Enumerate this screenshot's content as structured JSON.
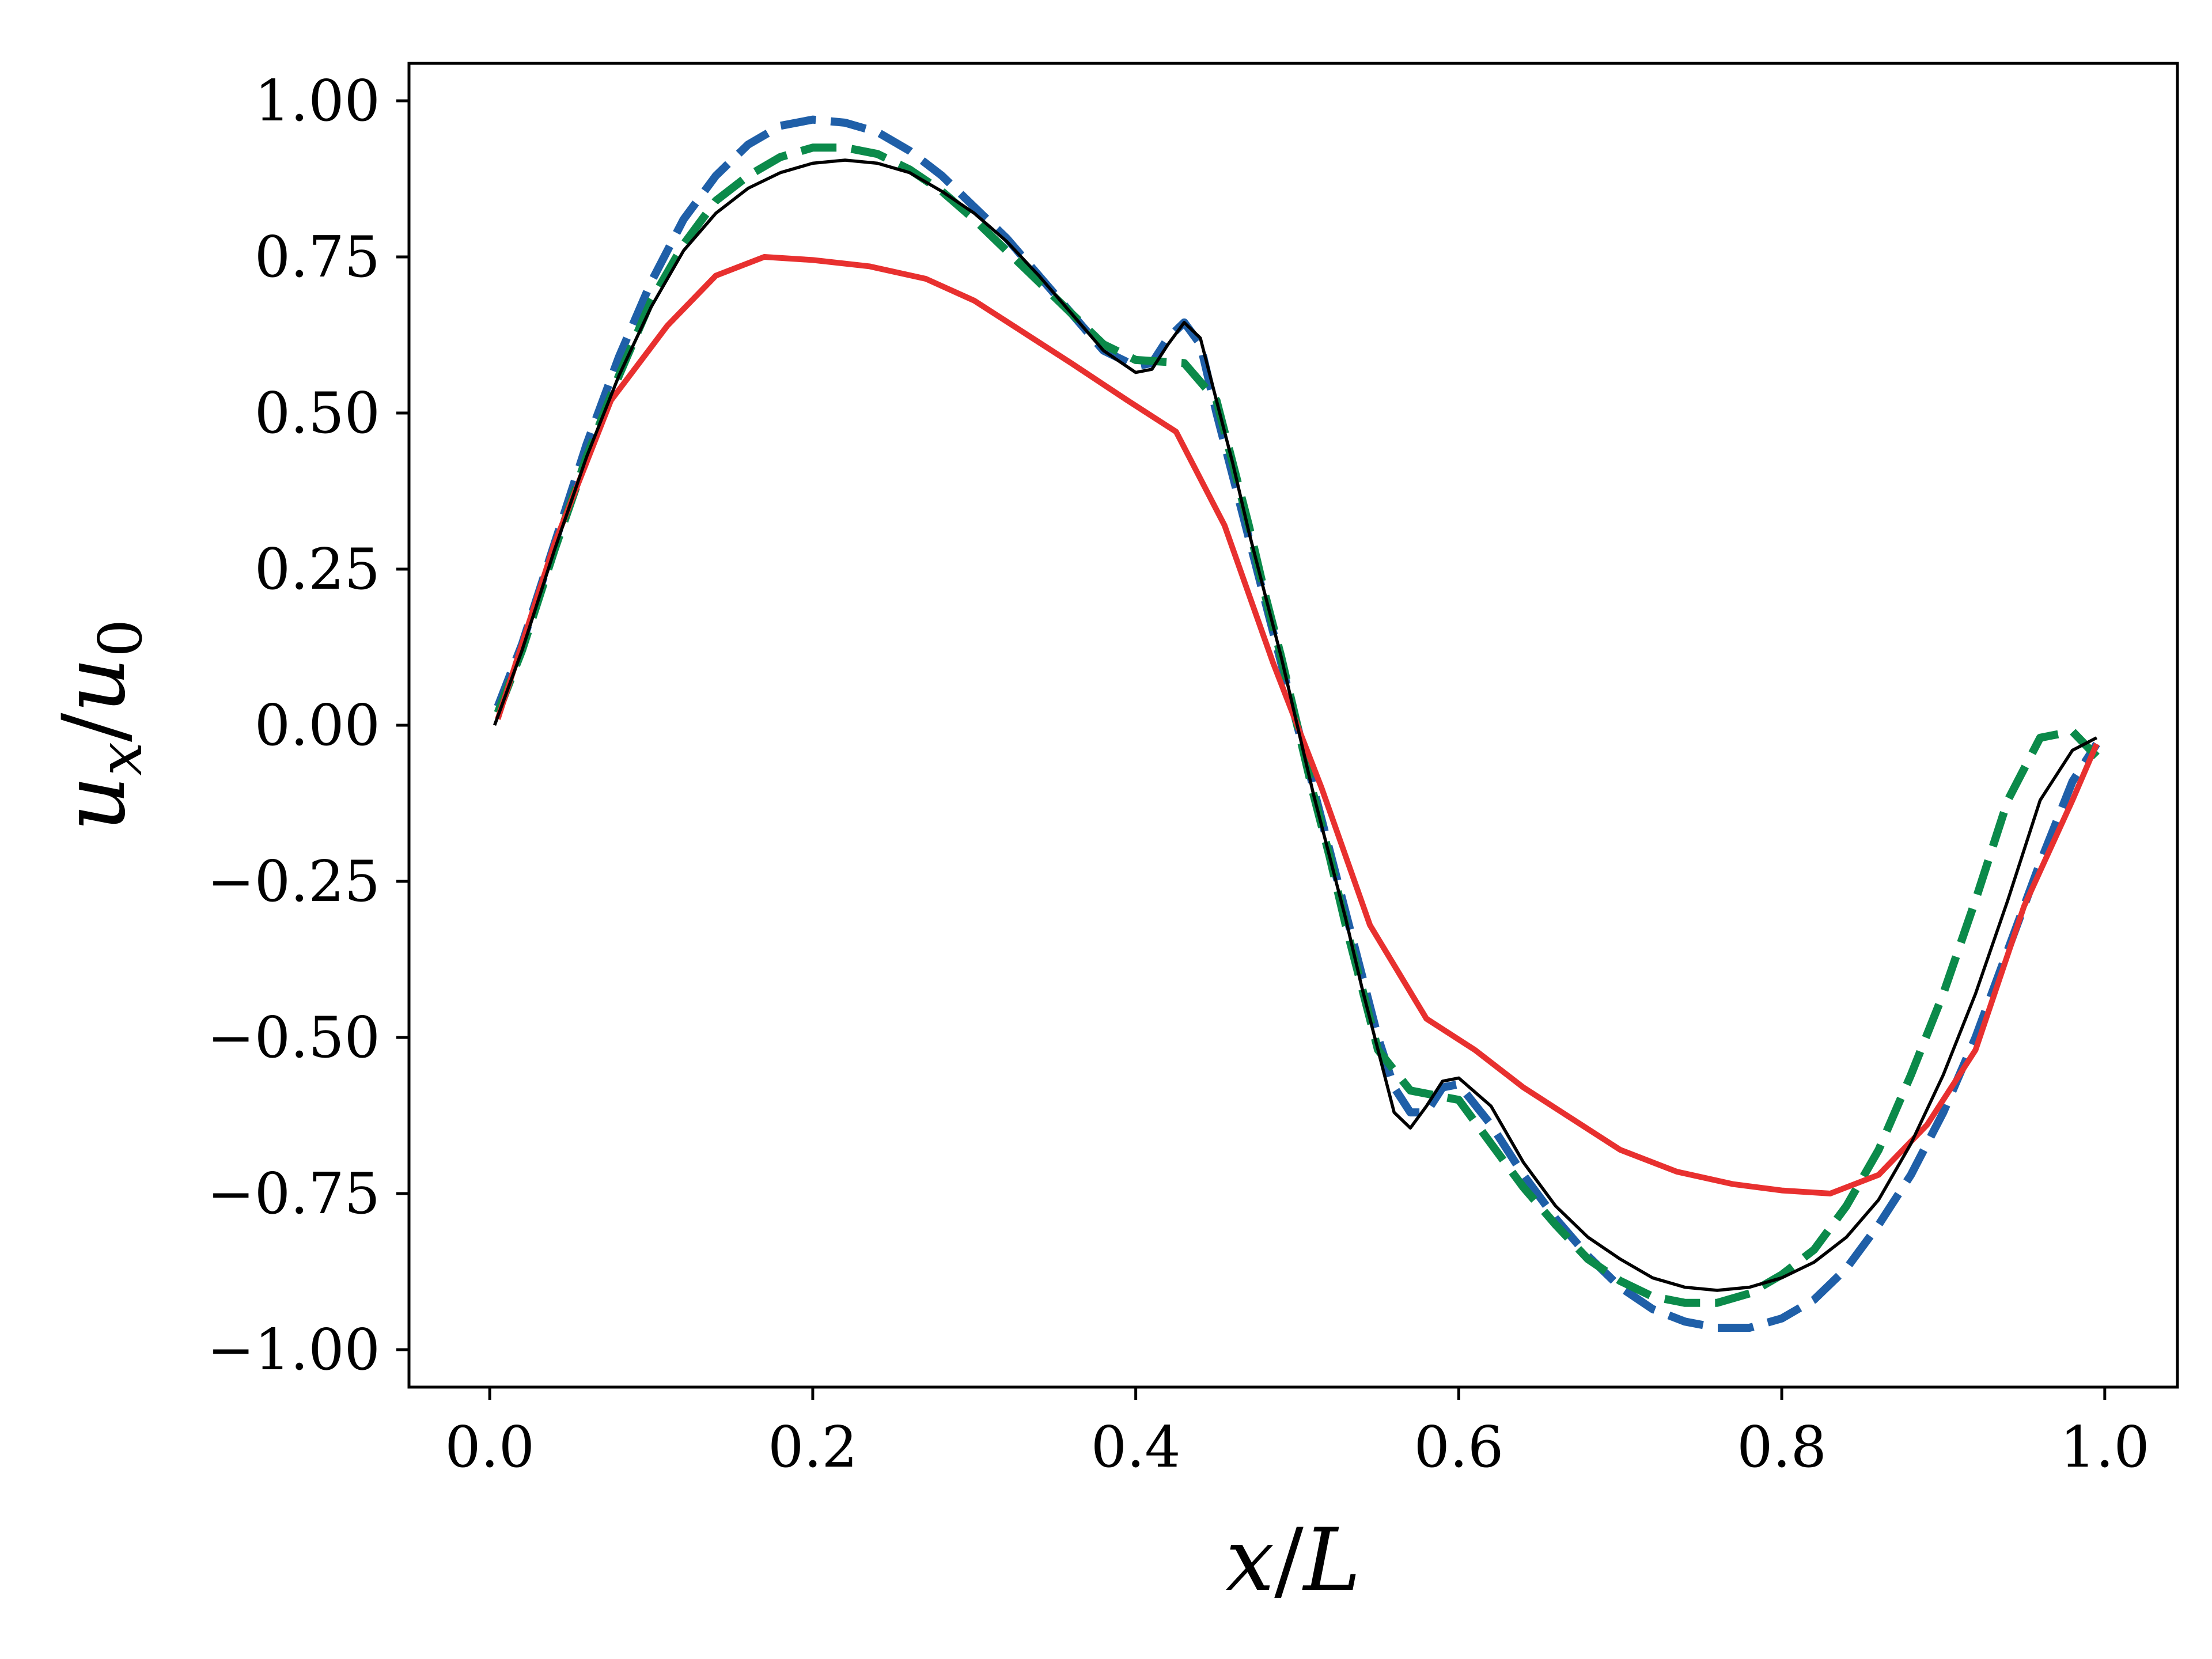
{
  "chart_data": {
    "type": "line",
    "title": "",
    "xlabel": "x/L",
    "ylabel": "u_x/u_0",
    "xlabel_parts": {
      "var": "x",
      "slash": "/",
      "den": "L"
    },
    "ylabel_parts": {
      "var": "u",
      "var_sub": "x",
      "slash": "/",
      "den": "u",
      "den_sub": "0"
    },
    "xlim": [
      -0.05,
      1.045
    ],
    "ylim": [
      -1.06,
      1.06
    ],
    "xticks": [
      0.0,
      0.2,
      0.4,
      0.6,
      0.8,
      1.0
    ],
    "xtick_labels": [
      "0.0",
      "0.2",
      "0.4",
      "0.6",
      "0.8",
      "1.0"
    ],
    "yticks": [
      1.0,
      0.75,
      0.5,
      0.25,
      0.0,
      -0.25,
      -0.5,
      -0.75,
      -1.0
    ],
    "ytick_labels": [
      "1.00",
      "0.75",
      "0.50",
      "0.25",
      "0.00",
      "−0.25",
      "−0.50",
      "−0.75",
      "−1.00"
    ],
    "grid": false,
    "legend": "none",
    "series": [
      {
        "color": "#1f5fa8",
        "style": "dashed",
        "x": [
          0.005,
          0.02,
          0.04,
          0.06,
          0.08,
          0.1,
          0.12,
          0.14,
          0.16,
          0.18,
          0.2,
          0.22,
          0.24,
          0.26,
          0.28,
          0.3,
          0.32,
          0.34,
          0.36,
          0.38,
          0.4,
          0.41,
          0.42,
          0.43,
          0.44,
          0.45,
          0.46,
          0.47,
          0.48,
          0.49,
          0.5,
          0.51,
          0.52,
          0.53,
          0.54,
          0.55,
          0.56,
          0.57,
          0.58,
          0.59,
          0.6,
          0.62,
          0.64,
          0.66,
          0.68,
          0.7,
          0.72,
          0.74,
          0.76,
          0.78,
          0.8,
          0.82,
          0.84,
          0.86,
          0.88,
          0.9,
          0.92,
          0.94,
          0.96,
          0.98,
          0.995
        ],
        "y": [
          0.03,
          0.13,
          0.29,
          0.45,
          0.59,
          0.71,
          0.81,
          0.88,
          0.93,
          0.96,
          0.97,
          0.965,
          0.95,
          0.92,
          0.88,
          0.83,
          0.78,
          0.72,
          0.66,
          0.6,
          0.575,
          0.58,
          0.62,
          0.645,
          0.61,
          0.5,
          0.4,
          0.3,
          0.2,
          0.1,
          0.0,
          -0.1,
          -0.2,
          -0.3,
          -0.4,
          -0.5,
          -0.58,
          -0.62,
          -0.62,
          -0.58,
          -0.575,
          -0.64,
          -0.72,
          -0.79,
          -0.85,
          -0.9,
          -0.935,
          -0.955,
          -0.965,
          -0.965,
          -0.95,
          -0.92,
          -0.87,
          -0.8,
          -0.72,
          -0.62,
          -0.5,
          -0.36,
          -0.22,
          -0.09,
          -0.03
        ]
      },
      {
        "color": "#0b8a4a",
        "style": "dashed",
        "x": [
          0.005,
          0.02,
          0.04,
          0.06,
          0.08,
          0.1,
          0.12,
          0.14,
          0.16,
          0.18,
          0.2,
          0.22,
          0.24,
          0.26,
          0.28,
          0.3,
          0.32,
          0.34,
          0.36,
          0.38,
          0.4,
          0.43,
          0.45,
          0.46,
          0.47,
          0.48,
          0.49,
          0.5,
          0.51,
          0.52,
          0.53,
          0.54,
          0.55,
          0.57,
          0.6,
          0.62,
          0.64,
          0.66,
          0.68,
          0.7,
          0.72,
          0.74,
          0.76,
          0.78,
          0.8,
          0.82,
          0.84,
          0.86,
          0.88,
          0.9,
          0.92,
          0.94,
          0.96,
          0.98,
          0.995
        ],
        "y": [
          0.02,
          0.12,
          0.28,
          0.43,
          0.56,
          0.68,
          0.77,
          0.84,
          0.88,
          0.91,
          0.925,
          0.925,
          0.915,
          0.89,
          0.855,
          0.81,
          0.76,
          0.71,
          0.66,
          0.61,
          0.585,
          0.58,
          0.52,
          0.42,
          0.32,
          0.21,
          0.11,
          0.0,
          -0.11,
          -0.21,
          -0.32,
          -0.42,
          -0.52,
          -0.585,
          -0.6,
          -0.67,
          -0.74,
          -0.8,
          -0.855,
          -0.89,
          -0.915,
          -0.925,
          -0.925,
          -0.91,
          -0.88,
          -0.84,
          -0.77,
          -0.68,
          -0.56,
          -0.43,
          -0.28,
          -0.12,
          -0.02,
          -0.01,
          -0.05
        ]
      },
      {
        "color": "#e8302f",
        "style": "solid",
        "x": [
          0.005,
          0.04,
          0.075,
          0.11,
          0.14,
          0.17,
          0.2,
          0.235,
          0.27,
          0.3,
          0.33,
          0.36,
          0.395,
          0.425,
          0.455,
          0.485,
          0.515,
          0.545,
          0.58,
          0.61,
          0.64,
          0.67,
          0.7,
          0.735,
          0.77,
          0.8,
          0.83,
          0.86,
          0.89,
          0.92,
          0.95,
          0.98,
          0.995
        ],
        "y": [
          0.01,
          0.29,
          0.52,
          0.64,
          0.72,
          0.75,
          0.745,
          0.735,
          0.715,
          0.68,
          0.63,
          0.58,
          0.52,
          0.47,
          0.32,
          0.1,
          -0.1,
          -0.32,
          -0.47,
          -0.52,
          -0.58,
          -0.63,
          -0.68,
          -0.715,
          -0.735,
          -0.745,
          -0.75,
          -0.72,
          -0.64,
          -0.52,
          -0.29,
          -0.12,
          -0.03
        ]
      },
      {
        "color": "#000000",
        "style": "solid",
        "x": [
          0.003,
          0.02,
          0.04,
          0.06,
          0.08,
          0.1,
          0.12,
          0.14,
          0.16,
          0.18,
          0.2,
          0.22,
          0.24,
          0.26,
          0.28,
          0.3,
          0.32,
          0.34,
          0.36,
          0.38,
          0.4,
          0.41,
          0.42,
          0.43,
          0.44,
          0.45,
          0.46,
          0.47,
          0.48,
          0.49,
          0.5,
          0.51,
          0.52,
          0.53,
          0.54,
          0.55,
          0.56,
          0.57,
          0.58,
          0.59,
          0.6,
          0.62,
          0.64,
          0.66,
          0.68,
          0.7,
          0.72,
          0.74,
          0.76,
          0.78,
          0.8,
          0.82,
          0.84,
          0.86,
          0.88,
          0.9,
          0.92,
          0.94,
          0.96,
          0.98,
          0.995
        ],
        "y": [
          0.0,
          0.12,
          0.28,
          0.43,
          0.56,
          0.67,
          0.76,
          0.82,
          0.86,
          0.885,
          0.9,
          0.905,
          0.9,
          0.885,
          0.855,
          0.82,
          0.775,
          0.72,
          0.66,
          0.6,
          0.565,
          0.57,
          0.61,
          0.645,
          0.62,
          0.52,
          0.42,
          0.31,
          0.21,
          0.11,
          0.0,
          -0.11,
          -0.21,
          -0.31,
          -0.42,
          -0.52,
          -0.62,
          -0.645,
          -0.61,
          -0.57,
          -0.565,
          -0.61,
          -0.7,
          -0.77,
          -0.82,
          -0.855,
          -0.885,
          -0.9,
          -0.905,
          -0.9,
          -0.885,
          -0.86,
          -0.82,
          -0.76,
          -0.67,
          -0.56,
          -0.43,
          -0.28,
          -0.12,
          -0.04,
          -0.02
        ]
      }
    ]
  }
}
